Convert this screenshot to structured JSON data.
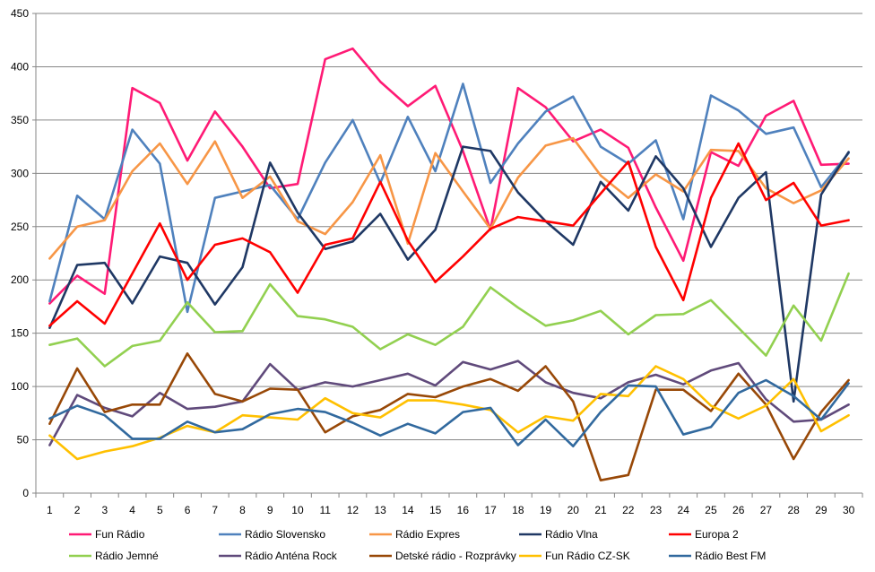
{
  "chart_data": {
    "type": "line",
    "title": "",
    "xlabel": "",
    "ylabel": "",
    "ylim": [
      0,
      450
    ],
    "yticks": [
      0,
      50,
      100,
      150,
      200,
      250,
      300,
      350,
      400,
      450
    ],
    "grid": true,
    "legend_position": "bottom",
    "categories": [
      "1",
      "2",
      "3",
      "4",
      "5",
      "6",
      "7",
      "8",
      "9",
      "10",
      "11",
      "12",
      "13",
      "14",
      "15",
      "16",
      "17",
      "18",
      "19",
      "20",
      "21",
      "22",
      "23",
      "24",
      "25",
      "26",
      "27",
      "28",
      "29",
      "30"
    ],
    "series": [
      {
        "name": "Fun Rádio",
        "color": "#ff1a75",
        "values": [
          178,
          204,
          187,
          380,
          366,
          312,
          358,
          325,
          286,
          290,
          407,
          417,
          386,
          363,
          382,
          321,
          247,
          380,
          362,
          330,
          341,
          324,
          268,
          218,
          320,
          307,
          354,
          368,
          308,
          309
        ]
      },
      {
        "name": "Rádio Slovensko",
        "color": "#4f81bd",
        "values": [
          180,
          279,
          257,
          341,
          309,
          170,
          277,
          283,
          289,
          257,
          310,
          350,
          291,
          353,
          302,
          384,
          291,
          328,
          358,
          372,
          325,
          309,
          331,
          257,
          373,
          359,
          337,
          343,
          287,
          319
        ]
      },
      {
        "name": "Rádio Expres",
        "color": "#f79646",
        "values": [
          220,
          250,
          256,
          302,
          328,
          290,
          330,
          277,
          297,
          255,
          243,
          273,
          317,
          234,
          319,
          283,
          248,
          296,
          326,
          333,
          298,
          277,
          299,
          283,
          322,
          321,
          286,
          272,
          284,
          314
        ]
      },
      {
        "name": "Rádio Vlna",
        "color": "#1f3864",
        "values": [
          155,
          214,
          216,
          178,
          222,
          216,
          177,
          212,
          310,
          263,
          229,
          236,
          262,
          219,
          247,
          325,
          321,
          282,
          255,
          233,
          292,
          265,
          316,
          286,
          231,
          277,
          301,
          86,
          280,
          320
        ]
      },
      {
        "name": "Europa 2",
        "color": "#ff0000",
        "values": [
          157,
          180,
          159,
          206,
          253,
          200,
          233,
          239,
          226,
          188,
          233,
          239,
          292,
          237,
          198,
          222,
          248,
          259,
          255,
          251,
          281,
          311,
          231,
          181,
          277,
          328,
          275,
          291,
          251,
          256
        ]
      },
      {
        "name": "Rádio Jemné",
        "color": "#92d050",
        "values": [
          139,
          145,
          119,
          138,
          143,
          179,
          151,
          152,
          196,
          166,
          163,
          156,
          135,
          149,
          139,
          156,
          193,
          174,
          157,
          162,
          171,
          149,
          167,
          168,
          181,
          155,
          129,
          176,
          143,
          206
        ]
      },
      {
        "name": "Rádio Anténa Rock",
        "color": "#604a7b",
        "values": [
          45,
          92,
          80,
          72,
          94,
          79,
          81,
          86,
          121,
          97,
          104,
          100,
          106,
          112,
          101,
          123,
          116,
          124,
          104,
          94,
          89,
          104,
          111,
          102,
          115,
          122,
          88,
          67,
          69,
          83
        ]
      },
      {
        "name": "Detské rádio - Rozprávky",
        "color": "#984807",
        "values": [
          65,
          117,
          76,
          83,
          83,
          131,
          93,
          86,
          98,
          97,
          57,
          72,
          78,
          93,
          90,
          100,
          107,
          96,
          119,
          86,
          12,
          17,
          97,
          97,
          77,
          112,
          83,
          32,
          76,
          106
        ]
      },
      {
        "name": "Fun Rádio CZ-SK",
        "color": "#ffc000",
        "values": [
          54,
          32,
          39,
          44,
          52,
          63,
          57,
          73,
          71,
          69,
          89,
          75,
          71,
          87,
          87,
          83,
          78,
          57,
          72,
          68,
          93,
          91,
          119,
          107,
          82,
          70,
          82,
          107,
          58,
          73
        ]
      },
      {
        "name": "Rádio Best FM",
        "color": "#31699e",
        "values": [
          70,
          82,
          73,
          51,
          51,
          67,
          57,
          60,
          74,
          79,
          76,
          66,
          54,
          65,
          56,
          76,
          80,
          45,
          69,
          44,
          76,
          101,
          100,
          55,
          62,
          94,
          106,
          91,
          69,
          103
        ]
      }
    ]
  }
}
